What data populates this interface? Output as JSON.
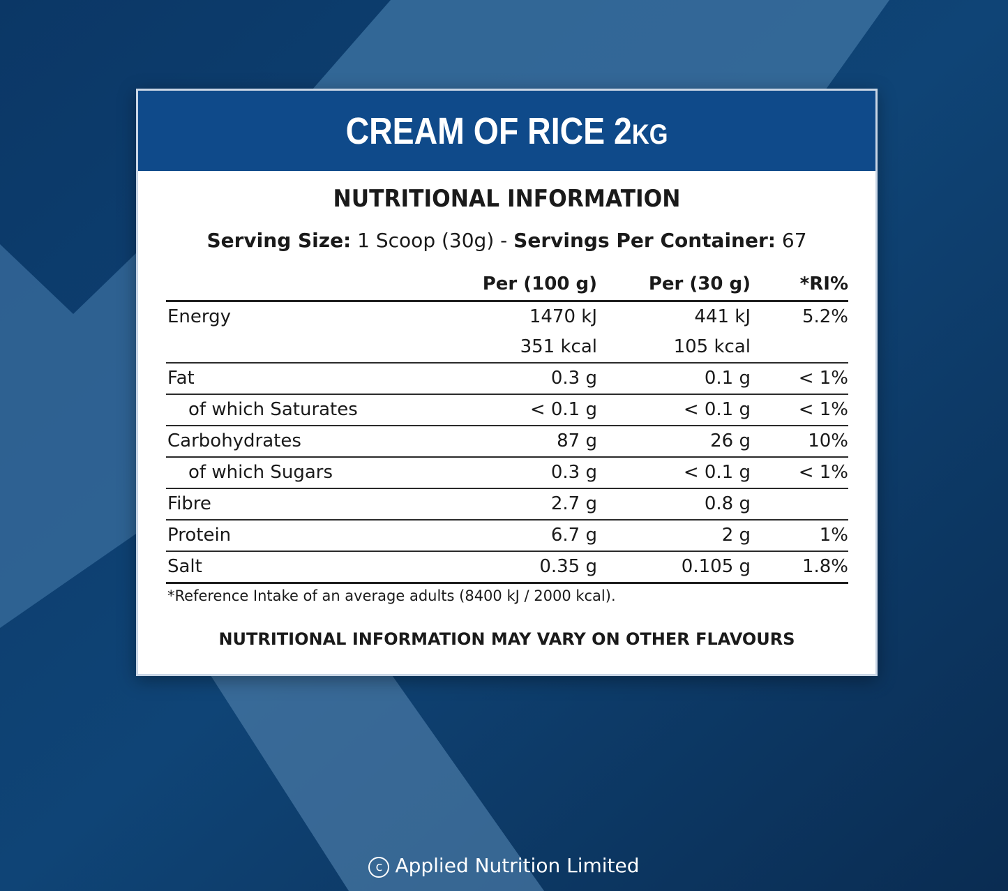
{
  "card": {
    "title": "CREAM OF RICE 2",
    "title_unit": "KG",
    "section_title": "NUTRITIONAL INFORMATION",
    "serving": {
      "size_label": "Serving Size:",
      "size_value": "1 Scoop (30g)",
      "separator": "-",
      "per_container_label": "Servings Per Container:",
      "per_container_value": "67"
    },
    "table": {
      "headers": [
        "Per (100 g)",
        "Per (30 g)",
        "*RI%"
      ],
      "rows": [
        {
          "label": "Energy",
          "per100": "1470 kJ",
          "per30": "441 kJ",
          "ri": "5.2%",
          "per100_2": "351 kcal",
          "per30_2": "105 kcal"
        },
        {
          "label": "Fat",
          "per100": "0.3 g",
          "per30": "0.1 g",
          "ri": "< 1%"
        },
        {
          "label": "of which Saturates",
          "per100": "< 0.1 g",
          "per30": "< 0.1 g",
          "ri": "< 1%"
        },
        {
          "label": "Carbohydrates",
          "per100": "87 g",
          "per30": "26 g",
          "ri": "10%"
        },
        {
          "label": "of which Sugars",
          "per100": "0.3 g",
          "per30": "< 0.1 g",
          "ri": "< 1%"
        },
        {
          "label": "Fibre",
          "per100": "2.7 g",
          "per30": "0.8 g",
          "ri": ""
        },
        {
          "label": "Protein",
          "per100": "6.7 g",
          "per30": "2 g",
          "ri": "1%"
        },
        {
          "label": "Salt",
          "per100": "0.35 g",
          "per30": "0.105 g",
          "ri": "1.8%"
        }
      ]
    },
    "footnote": "*Reference Intake of an average adults (8400 kJ / 2000 kcal).",
    "disclaimer": "NUTRITIONAL INFORMATION MAY VARY ON OTHER FLAVOURS"
  },
  "copyright": {
    "icon": "copyright-icon",
    "symbol": "c",
    "text": "Applied Nutrition Limited"
  },
  "colors": {
    "background": "#0d3a66",
    "header": "#0f4a8a",
    "stripe": "#3a6e9e"
  }
}
